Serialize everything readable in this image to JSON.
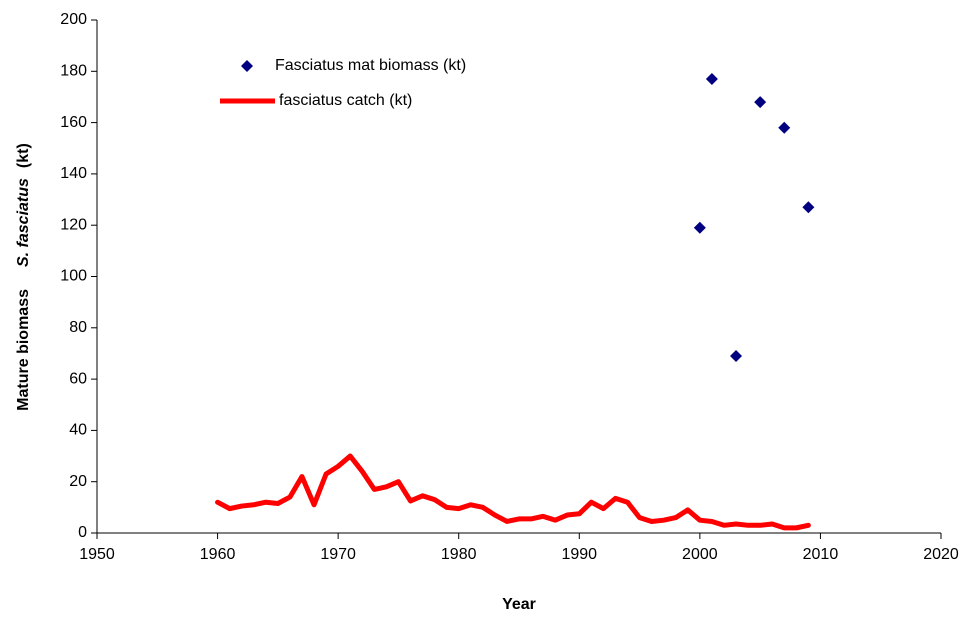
{
  "chart_data": {
    "type": "scatter",
    "xlabel": "Year",
    "ylabel": [
      "Mature biomass",
      "S. fasciatus",
      "(kt)"
    ],
    "xlim": [
      1950,
      2020
    ],
    "xticks": [
      1950,
      1960,
      1970,
      1980,
      1990,
      2000,
      2010,
      2020
    ],
    "ylim": [
      0,
      200
    ],
    "yticks": [
      0,
      20,
      40,
      60,
      80,
      100,
      120,
      140,
      160,
      180,
      200
    ],
    "series": [
      {
        "name": "Fasciatus mat biomass (kt)",
        "marker": "diamond",
        "color": "#000080",
        "x": [
          2000,
          2001,
          2003,
          2005,
          2007,
          2009
        ],
        "values": [
          119,
          177,
          69,
          168,
          158,
          127
        ]
      },
      {
        "name": "fasciatus catch (kt)",
        "marker": "line",
        "color": "#ff0000",
        "x": [
          1960,
          1961,
          1962,
          1963,
          1964,
          1965,
          1966,
          1967,
          1968,
          1969,
          1970,
          1971,
          1972,
          1973,
          1974,
          1975,
          1976,
          1977,
          1978,
          1979,
          1980,
          1981,
          1982,
          1983,
          1984,
          1985,
          1986,
          1987,
          1988,
          1989,
          1990,
          1991,
          1992,
          1993,
          1994,
          1995,
          1996,
          1997,
          1998,
          1999,
          2000,
          2001,
          2002,
          2003,
          2004,
          2005,
          2006,
          2007,
          2008,
          2009
        ],
        "values": [
          12,
          9.5,
          10.5,
          11,
          12,
          11.5,
          14,
          22,
          11,
          23,
          26,
          30,
          24,
          17,
          18,
          20,
          12.5,
          14.5,
          13,
          10,
          9.5,
          11,
          10,
          7,
          4.5,
          5.5,
          5.5,
          6.5,
          5,
          7,
          7.5,
          12,
          9.5,
          13.5,
          12,
          6,
          4.5,
          5,
          6,
          9,
          5,
          4.5,
          3,
          3.5,
          3,
          3,
          3.5,
          2,
          2,
          3
        ]
      }
    ]
  }
}
